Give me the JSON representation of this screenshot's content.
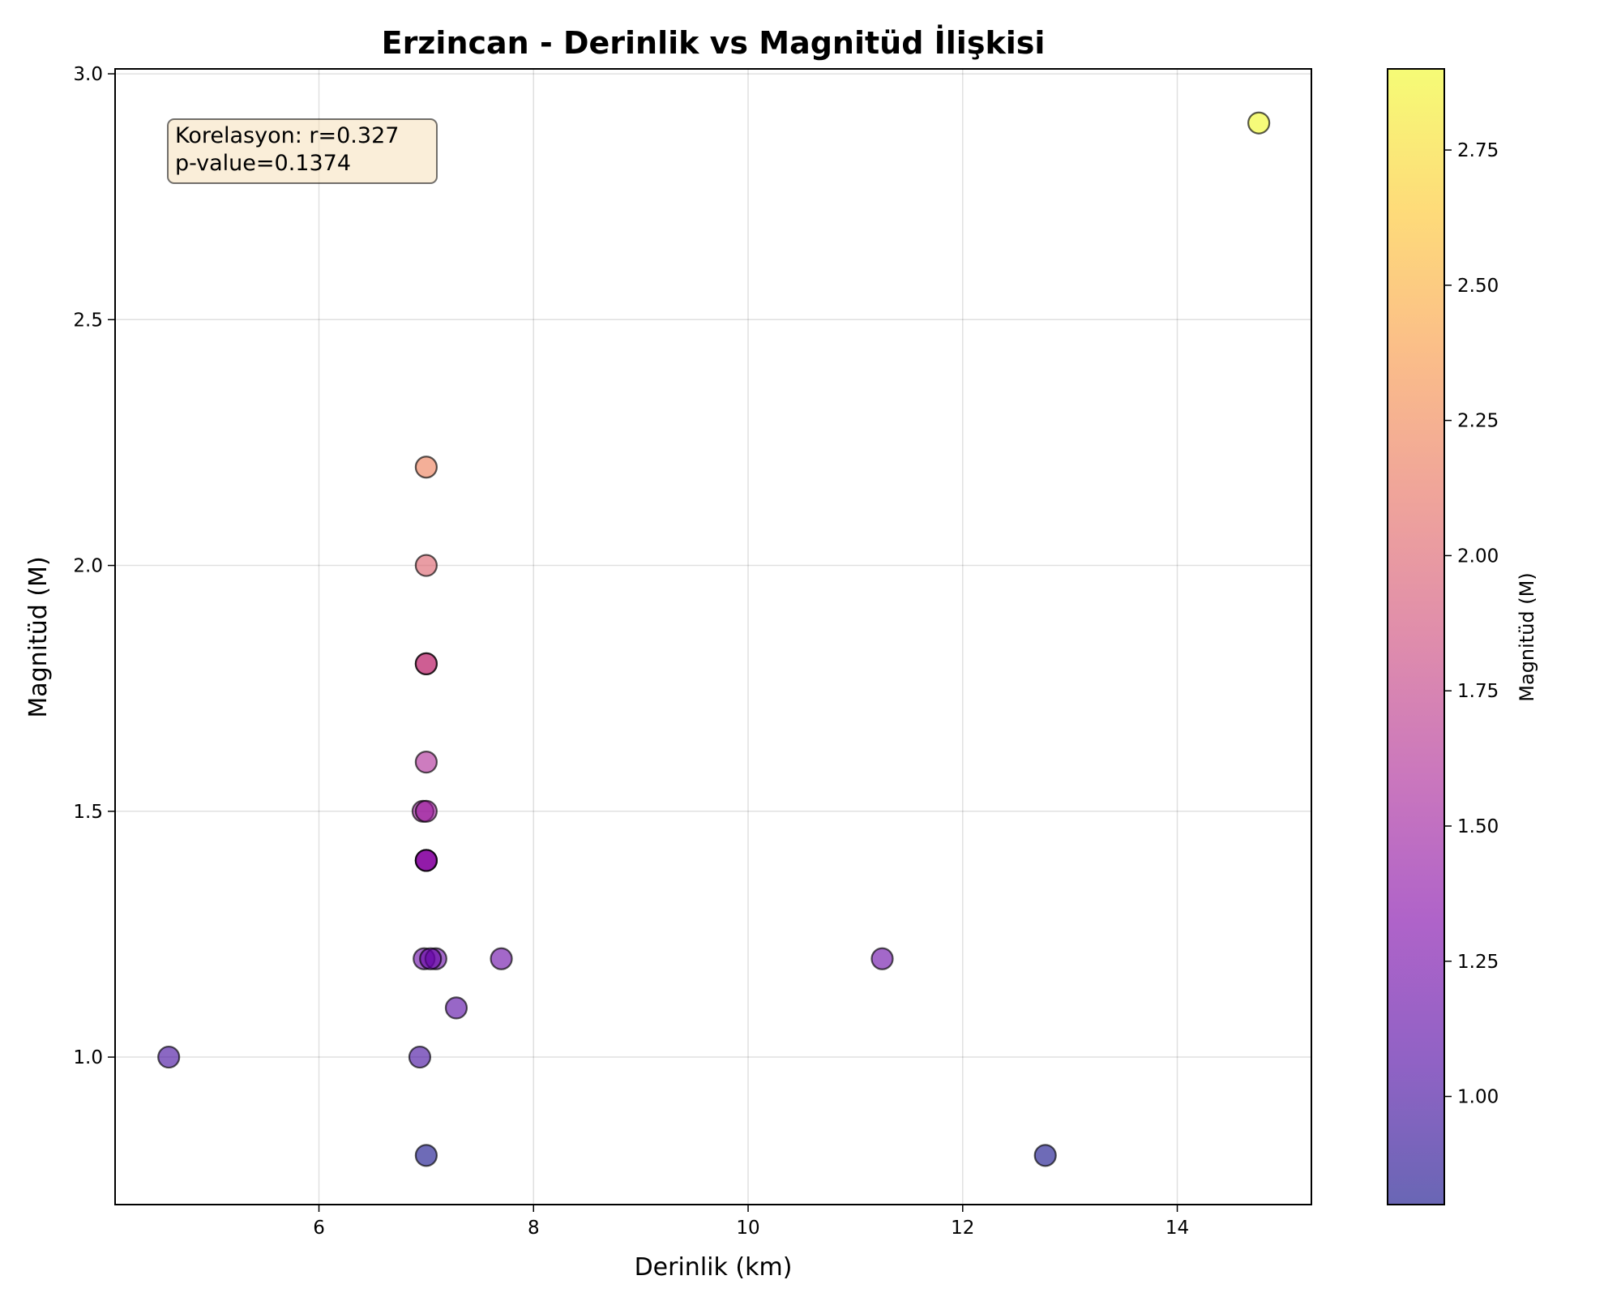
{
  "chart_data": {
    "type": "scatter",
    "title": "Erzincan - Derinlik vs Magnitüd İlişkisi",
    "xlabel": "Derinlik (km)",
    "ylabel": "Magnitüd (M)",
    "xlim": [
      4.1,
      15.25
    ],
    "ylim": [
      0.7,
      3.01
    ],
    "xticks": [
      6,
      8,
      10,
      12,
      14
    ],
    "yticks": [
      1.0,
      1.5,
      2.0,
      2.5,
      3.0
    ],
    "grid": true,
    "annotation": {
      "line1": "Korelasyon: r=0.327",
      "line2": "p-value=0.1374"
    },
    "colorbar": {
      "label": "Magnitüd (M)",
      "range": [
        0.8,
        2.9
      ],
      "ticks": [
        1.0,
        1.25,
        1.5,
        1.75,
        2.0,
        2.25,
        2.5,
        2.75
      ],
      "colormap": "plasma"
    },
    "points": [
      {
        "x": 4.6,
        "y": 1.0
      },
      {
        "x": 6.94,
        "y": 1.0
      },
      {
        "x": 7.0,
        "y": 0.8
      },
      {
        "x": 12.77,
        "y": 0.8
      },
      {
        "x": 14.76,
        "y": 2.9
      },
      {
        "x": 7.0,
        "y": 2.2
      },
      {
        "x": 7.0,
        "y": 2.0
      },
      {
        "x": 7.0,
        "y": 1.8
      },
      {
        "x": 7.0,
        "y": 1.8
      },
      {
        "x": 7.0,
        "y": 1.6
      },
      {
        "x": 6.97,
        "y": 1.5
      },
      {
        "x": 7.0,
        "y": 1.5
      },
      {
        "x": 7.0,
        "y": 1.4
      },
      {
        "x": 7.0,
        "y": 1.4
      },
      {
        "x": 7.0,
        "y": 1.4
      },
      {
        "x": 6.98,
        "y": 1.2
      },
      {
        "x": 7.09,
        "y": 1.2
      },
      {
        "x": 7.04,
        "y": 1.2
      },
      {
        "x": 7.7,
        "y": 1.2
      },
      {
        "x": 11.25,
        "y": 1.2
      },
      {
        "x": 7.28,
        "y": 1.1
      }
    ]
  }
}
